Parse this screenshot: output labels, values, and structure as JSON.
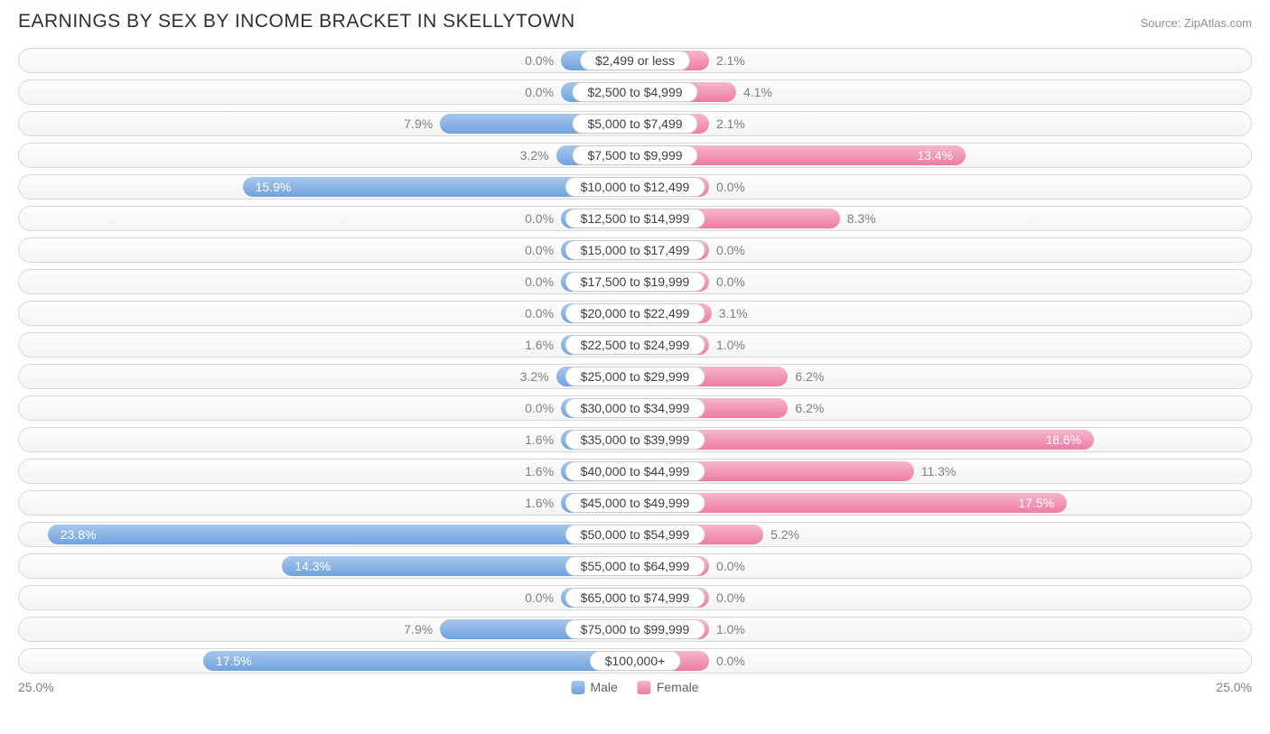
{
  "title": "EARNINGS BY SEX BY INCOME BRACKET IN SKELLYTOWN",
  "source": "Source: ZipAtlas.com",
  "axis_max_pct": 25.0,
  "axis_label_left": "25.0%",
  "axis_label_right": "25.0%",
  "legend": {
    "male": "Male",
    "female": "Female"
  },
  "colors": {
    "male_top": "#a9c7ec",
    "male_bot": "#6ea3de",
    "female_top": "#f7b6cc",
    "female_bot": "#ee7ba3",
    "track_border": "#d8d8d8",
    "label_text": "#404040",
    "value_out": "#808080",
    "value_in": "#ffffff",
    "background": "#ffffff"
  },
  "min_bar_pct": 3.0,
  "label_inside_threshold_pct": 13.0,
  "rows": [
    {
      "category": "$2,499 or less",
      "male": 0.0,
      "female": 2.1
    },
    {
      "category": "$2,500 to $4,999",
      "male": 0.0,
      "female": 4.1
    },
    {
      "category": "$5,000 to $7,499",
      "male": 7.9,
      "female": 2.1
    },
    {
      "category": "$7,500 to $9,999",
      "male": 3.2,
      "female": 13.4
    },
    {
      "category": "$10,000 to $12,499",
      "male": 15.9,
      "female": 0.0
    },
    {
      "category": "$12,500 to $14,999",
      "male": 0.0,
      "female": 8.3
    },
    {
      "category": "$15,000 to $17,499",
      "male": 0.0,
      "female": 0.0
    },
    {
      "category": "$17,500 to $19,999",
      "male": 0.0,
      "female": 0.0
    },
    {
      "category": "$20,000 to $22,499",
      "male": 0.0,
      "female": 3.1
    },
    {
      "category": "$22,500 to $24,999",
      "male": 1.6,
      "female": 1.0
    },
    {
      "category": "$25,000 to $29,999",
      "male": 3.2,
      "female": 6.2
    },
    {
      "category": "$30,000 to $34,999",
      "male": 0.0,
      "female": 6.2
    },
    {
      "category": "$35,000 to $39,999",
      "male": 1.6,
      "female": 18.6
    },
    {
      "category": "$40,000 to $44,999",
      "male": 1.6,
      "female": 11.3
    },
    {
      "category": "$45,000 to $49,999",
      "male": 1.6,
      "female": 17.5
    },
    {
      "category": "$50,000 to $54,999",
      "male": 23.8,
      "female": 5.2
    },
    {
      "category": "$55,000 to $64,999",
      "male": 14.3,
      "female": 0.0
    },
    {
      "category": "$65,000 to $74,999",
      "male": 0.0,
      "female": 0.0
    },
    {
      "category": "$75,000 to $99,999",
      "male": 7.9,
      "female": 1.0
    },
    {
      "category": "$100,000+",
      "male": 17.5,
      "female": 0.0
    }
  ]
}
